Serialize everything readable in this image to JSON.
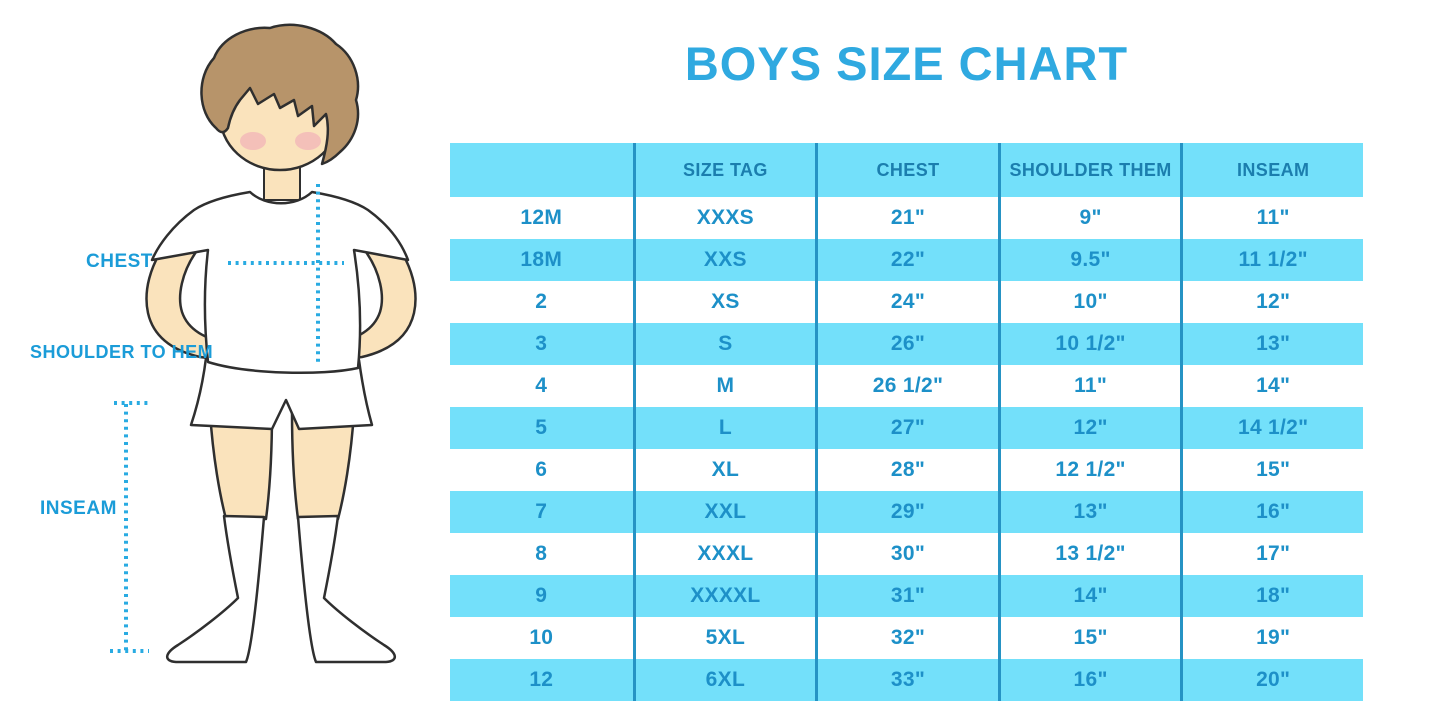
{
  "title": "BOYS SIZE CHART",
  "figure": {
    "labels": {
      "chest": "CHEST",
      "shoulder_to_hem": "SHOULDER TO HEM",
      "inseam": "INSEAM"
    },
    "description": "faceless boy illustration in white t-shirt, shorts and knee socks with dotted measurement guides"
  },
  "colors": {
    "title_blue": "#2FA9E0",
    "label_blue": "#1B9CD8",
    "dotted_line_blue": "#29ABE2",
    "table_stripe_bg": "#73E0FA",
    "table_divider": "#2693C4",
    "header_text": "#1B7EAE",
    "cell_text": "#1D90C8",
    "skin": "#FAE3BC",
    "hair": "#B7946A",
    "blush": "#F0A8B8",
    "outline": "#2F2F2F"
  },
  "chart_data": {
    "type": "table",
    "title": "BOYS SIZE CHART",
    "columns": [
      "",
      "SIZE TAG",
      "CHEST",
      "SHOULDER THEM",
      "INSEAM"
    ],
    "rows": [
      [
        "12M",
        "XXXS",
        "21\"",
        "9\"",
        "11\""
      ],
      [
        "18M",
        "XXS",
        "22\"",
        "9.5\"",
        "11 1/2\""
      ],
      [
        "2",
        "XS",
        "24\"",
        "10\"",
        "12\""
      ],
      [
        "3",
        "S",
        "26\"",
        "10 1/2\"",
        "13\""
      ],
      [
        "4",
        "M",
        "26 1/2\"",
        "11\"",
        "14\""
      ],
      [
        "5",
        "L",
        "27\"",
        "12\"",
        "14 1/2\""
      ],
      [
        "6",
        "XL",
        "28\"",
        "12 1/2\"",
        "15\""
      ],
      [
        "7",
        "XXL",
        "29\"",
        "13\"",
        "16\""
      ],
      [
        "8",
        "XXXL",
        "30\"",
        "13 1/2\"",
        "17\""
      ],
      [
        "9",
        "XXXXL",
        "31\"",
        "14\"",
        "18\""
      ],
      [
        "10",
        "5XL",
        "32\"",
        "15\"",
        "19\""
      ],
      [
        "12",
        "6XL",
        "33\"",
        "16\"",
        "20\""
      ]
    ],
    "layout": {
      "striping": "rows alternate white and light blue, first data row white",
      "header_bg": "#73E0FA",
      "grid": "vertical column dividers only, no horizontal borders",
      "legend_position": "none"
    }
  }
}
